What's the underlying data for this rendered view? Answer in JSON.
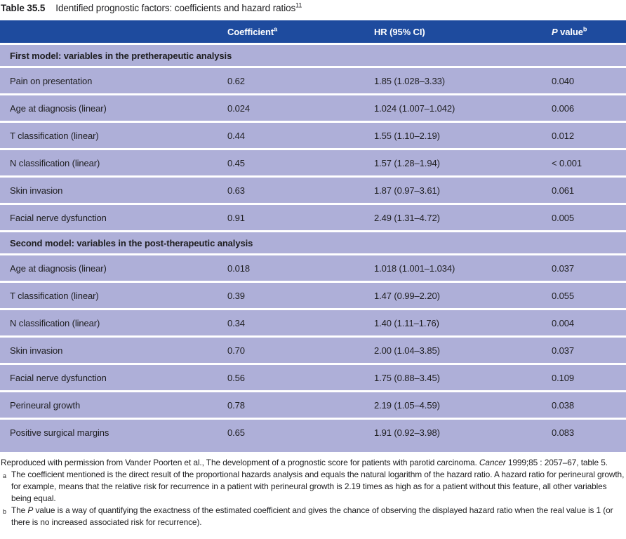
{
  "title": {
    "label": "Table 35.5",
    "text": "Identified prognostic factors: coefficients and hazard ratios",
    "ref": "11"
  },
  "table": {
    "header": {
      "factor": "",
      "coefficient": {
        "label": "Coefficient",
        "sup": "a"
      },
      "hr": {
        "label": "HR (95% CI)",
        "sup": ""
      },
      "p_value": {
        "italic": "P",
        "rest": " value",
        "sup": "b"
      }
    },
    "sections": [
      {
        "header": "First model: variables in the pretherapeutic analysis",
        "rows": [
          {
            "factor": "Pain on presentation",
            "coefficient": "0.62",
            "hr": "1.85 (1.028–3.33)",
            "p": "0.040"
          },
          {
            "factor": "Age at diagnosis (linear)",
            "coefficient": "0.024",
            "hr": "1.024 (1.007–1.042)",
            "p": "0.006"
          },
          {
            "factor": "T classification (linear)",
            "coefficient": "0.44",
            "hr": "1.55 (1.10–2.19)",
            "p": "0.012"
          },
          {
            "factor": "N classification (linear)",
            "coefficient": "0.45",
            "hr": "1.57 (1.28–1.94)",
            "p": "< 0.001"
          },
          {
            "factor": "Skin invasion",
            "coefficient": "0.63",
            "hr": "1.87 (0.97–3.61)",
            "p": "0.061"
          },
          {
            "factor": "Facial nerve dysfunction",
            "coefficient": "0.91",
            "hr": "2.49 (1.31–4.72)",
            "p": "0.005"
          }
        ]
      },
      {
        "header": "Second model: variables in the post-therapeutic analysis",
        "rows": [
          {
            "factor": "Age at diagnosis (linear)",
            "coefficient": "0.018",
            "hr": "1.018 (1.001–1.034)",
            "p": "0.037"
          },
          {
            "factor": "T classification (linear)",
            "coefficient": "0.39",
            "hr": "1.47 (0.99–2.20)",
            "p": "0.055"
          },
          {
            "factor": "N classification (linear)",
            "coefficient": "0.34",
            "hr": "1.40 (1.11–1.76)",
            "p": "0.004"
          },
          {
            "factor": "Skin invasion",
            "coefficient": "0.70",
            "hr": "2.00 (1.04–3.85)",
            "p": "0.037"
          },
          {
            "factor": "Facial nerve dysfunction",
            "coefficient": "0.56",
            "hr": "1.75 (0.88–3.45)",
            "p": "0.109"
          },
          {
            "factor": "Perineural growth",
            "coefficient": "0.78",
            "hr": "2.19 (1.05–4.59)",
            "p": "0.038"
          },
          {
            "factor": "Positive surgical margins",
            "coefficient": "0.65",
            "hr": "1.91 (0.92–3.98)",
            "p": "0.083"
          }
        ]
      }
    ]
  },
  "footer": {
    "source_prefix": "Reproduced with permission from Vander Poorten et al., The development of a prognostic score for patients with parotid carcinoma. ",
    "source_journal": "Cancer",
    "source_suffix": " 1999;85 : 2057–67, table 5.",
    "footnotes": [
      {
        "marker": "a",
        "text": "The coefficient mentioned is the direct result of the proportional hazards analysis and equals the natural logarithm of the hazard ratio. A hazard ratio for perineural growth, for example, means that the relative risk for recurrence in a patient with perineural growth is 2.19 times as high as for a patient without this feature, all other variables being equal."
      },
      {
        "marker": "b",
        "text_prefix": "The ",
        "text_italic": "P",
        "text_suffix": " value is a way of quantifying the exactness of the estimated coefficient and gives the chance of observing the displayed hazard ratio when the real value is 1 (or there is no increased associated risk for recurrence)."
      }
    ]
  },
  "colors": {
    "header_bg": "#1e4b9e",
    "row_bg": "#aeafd8",
    "header_text": "#ffffff",
    "body_text": "#1e1e20"
  }
}
